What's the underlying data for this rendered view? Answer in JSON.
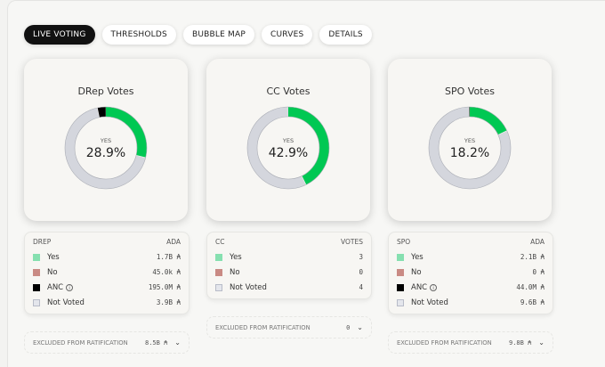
{
  "tabs": [
    "LIVE VOTING",
    "THRESHOLDS",
    "BUBBLE MAP",
    "CURVES",
    "DETAILS"
  ],
  "colors": {
    "yes": "#00c853",
    "no": "#c98a84",
    "anc": "#000000",
    "not_voted": "#d4d6dd",
    "yes_swatch": "#86e0b0"
  },
  "panels": [
    {
      "title": "DRep Votes",
      "center_label": "YES",
      "percent": "28.9%",
      "segments": {
        "yes": 28.9,
        "no": 0,
        "not_voted": 67.7,
        "anc": 3.4
      },
      "legend": {
        "header": "DREP",
        "unit": "ADA",
        "rows": [
          {
            "name": "Yes",
            "value": "1.7B ₳",
            "key": "yes"
          },
          {
            "name": "No",
            "value": "45.0k ₳",
            "key": "no"
          },
          {
            "name": "ANC",
            "value": "195.0M ₳",
            "key": "anc",
            "info": "i"
          },
          {
            "name": "Not Voted",
            "value": "3.9B ₳",
            "key": "not_voted"
          }
        ]
      },
      "excluded": {
        "label": "EXCLUDED FROM RATIFICATION",
        "value": "8.5B ₳"
      }
    },
    {
      "title": "CC Votes",
      "center_label": "YES",
      "percent": "42.9%",
      "segments": {
        "yes": 42.9,
        "no": 0,
        "not_voted": 57.1,
        "anc": 0
      },
      "legend": {
        "header": "CC",
        "unit": "VOTES",
        "rows": [
          {
            "name": "Yes",
            "value": "3",
            "key": "yes"
          },
          {
            "name": "No",
            "value": "0",
            "key": "no"
          },
          {
            "name": "Not Voted",
            "value": "4",
            "key": "not_voted"
          }
        ]
      },
      "excluded": {
        "label": "EXCLUDED FROM RATIFICATION",
        "value": "0"
      }
    },
    {
      "title": "SPO Votes",
      "center_label": "YES",
      "percent": "18.2%",
      "segments": {
        "yes": 18.2,
        "no": 0,
        "not_voted": 81.4,
        "anc": 0.4
      },
      "legend": {
        "header": "SPO",
        "unit": "ADA",
        "rows": [
          {
            "name": "Yes",
            "value": "2.1B ₳",
            "key": "yes"
          },
          {
            "name": "No",
            "value": "0 ₳",
            "key": "no"
          },
          {
            "name": "ANC",
            "value": "44.0M ₳",
            "key": "anc",
            "info": "i"
          },
          {
            "name": "Not Voted",
            "value": "9.6B ₳",
            "key": "not_voted"
          }
        ]
      },
      "excluded": {
        "label": "EXCLUDED FROM RATIFICATION",
        "value": "9.8B ₳"
      }
    }
  ]
}
